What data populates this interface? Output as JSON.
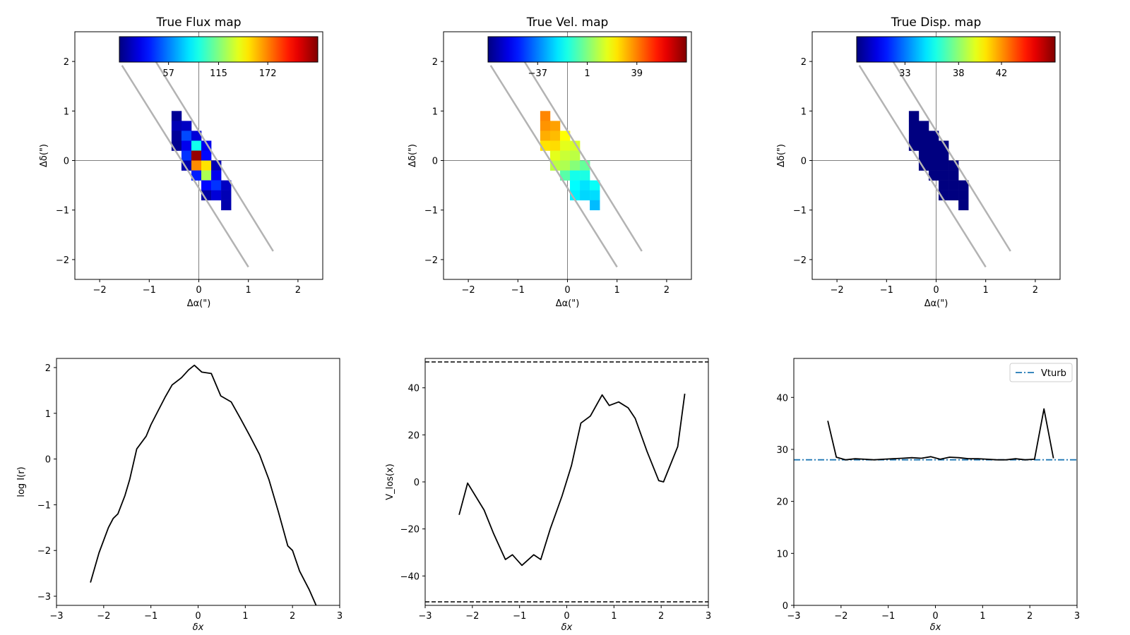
{
  "chart_data": [
    {
      "type": "heatmap",
      "title": "True Flux map",
      "xlabel": "Δα(\")",
      "ylabel": "Δδ(\")",
      "xlim": [
        -2.5,
        2.5
      ],
      "ylim": [
        -2.4,
        2.6
      ],
      "xticks": [
        -2,
        -1,
        0,
        1,
        2
      ],
      "yticks": [
        -2,
        -1,
        0,
        1,
        2
      ],
      "colormap": "jet",
      "vmin": 0,
      "vmax": 230,
      "colorbar_ticks": [
        57,
        115,
        172
      ],
      "pixel_size": 0.2,
      "cells": [
        {
          "x": -0.45,
          "y": 0.9,
          "v": 5
        },
        {
          "x": -0.45,
          "y": 0.7,
          "v": 12
        },
        {
          "x": -0.45,
          "y": 0.5,
          "v": 6
        },
        {
          "x": -0.45,
          "y": 0.3,
          "v": 4
        },
        {
          "x": -0.25,
          "y": 0.7,
          "v": 15
        },
        {
          "x": -0.25,
          "y": 0.5,
          "v": 45
        },
        {
          "x": -0.25,
          "y": 0.3,
          "v": 25
        },
        {
          "x": -0.25,
          "y": 0.1,
          "v": 40
        },
        {
          "x": -0.25,
          "y": -0.1,
          "v": 10
        },
        {
          "x": -0.05,
          "y": 0.5,
          "v": 20
        },
        {
          "x": -0.05,
          "y": 0.3,
          "v": 90
        },
        {
          "x": -0.05,
          "y": 0.1,
          "v": 225
        },
        {
          "x": -0.05,
          "y": -0.1,
          "v": 170
        },
        {
          "x": -0.05,
          "y": -0.3,
          "v": 35
        },
        {
          "x": 0.15,
          "y": 0.3,
          "v": 25
        },
        {
          "x": 0.15,
          "y": 0.1,
          "v": 30
        },
        {
          "x": 0.15,
          "y": -0.1,
          "v": 150
        },
        {
          "x": 0.15,
          "y": -0.3,
          "v": 125
        },
        {
          "x": 0.15,
          "y": -0.5,
          "v": 30
        },
        {
          "x": 0.15,
          "y": -0.7,
          "v": 8
        },
        {
          "x": 0.35,
          "y": -0.1,
          "v": 12
        },
        {
          "x": 0.35,
          "y": -0.3,
          "v": 25
        },
        {
          "x": 0.35,
          "y": -0.5,
          "v": 40
        },
        {
          "x": 0.35,
          "y": -0.7,
          "v": 20
        },
        {
          "x": 0.55,
          "y": -0.5,
          "v": 15
        },
        {
          "x": 0.55,
          "y": -0.7,
          "v": 12
        },
        {
          "x": 0.55,
          "y": -0.9,
          "v": 10
        }
      ],
      "slit_lines": [
        {
          "x": [
            -1.55,
            1.0
          ],
          "y": [
            1.92,
            -2.15
          ]
        },
        {
          "x": [
            -0.9,
            1.5
          ],
          "y": [
            2.05,
            -1.83
          ]
        }
      ]
    },
    {
      "type": "heatmap",
      "title": "True Vel. map",
      "xlabel": "Δα(\")",
      "ylabel": "Δδ(\")",
      "xlim": [
        -2.5,
        2.5
      ],
      "ylim": [
        -2.4,
        2.6
      ],
      "xticks": [
        -2,
        -1,
        0,
        1,
        2
      ],
      "yticks": [
        -2,
        -1,
        0,
        1,
        2
      ],
      "colormap": "jet",
      "vmin": -75,
      "vmax": 77,
      "colorbar_ticks": [
        -37,
        1,
        39
      ],
      "pixel_size": 0.2,
      "cells": [
        {
          "x": -0.45,
          "y": 0.9,
          "v": 38
        },
        {
          "x": -0.45,
          "y": 0.7,
          "v": 36
        },
        {
          "x": -0.45,
          "y": 0.5,
          "v": 32
        },
        {
          "x": -0.45,
          "y": 0.3,
          "v": 24
        },
        {
          "x": -0.25,
          "y": 0.7,
          "v": 34
        },
        {
          "x": -0.25,
          "y": 0.5,
          "v": 30
        },
        {
          "x": -0.25,
          "y": 0.3,
          "v": 25
        },
        {
          "x": -0.25,
          "y": 0.1,
          "v": 16
        },
        {
          "x": -0.25,
          "y": -0.1,
          "v": 10
        },
        {
          "x": -0.05,
          "y": 0.5,
          "v": 20
        },
        {
          "x": -0.05,
          "y": 0.3,
          "v": 16
        },
        {
          "x": -0.05,
          "y": 0.1,
          "v": 12
        },
        {
          "x": -0.05,
          "y": -0.1,
          "v": 8
        },
        {
          "x": -0.05,
          "y": -0.3,
          "v": -5
        },
        {
          "x": 0.15,
          "y": 0.3,
          "v": 14
        },
        {
          "x": 0.15,
          "y": 0.1,
          "v": 10
        },
        {
          "x": 0.15,
          "y": -0.1,
          "v": 2
        },
        {
          "x": 0.15,
          "y": -0.3,
          "v": -15
        },
        {
          "x": 0.15,
          "y": -0.5,
          "v": -18
        },
        {
          "x": 0.15,
          "y": -0.7,
          "v": -20
        },
        {
          "x": 0.35,
          "y": -0.1,
          "v": -3
        },
        {
          "x": 0.35,
          "y": -0.3,
          "v": -14
        },
        {
          "x": 0.35,
          "y": -0.5,
          "v": -22
        },
        {
          "x": 0.35,
          "y": -0.7,
          "v": -24
        },
        {
          "x": 0.55,
          "y": -0.5,
          "v": -17
        },
        {
          "x": 0.55,
          "y": -0.7,
          "v": -23
        },
        {
          "x": 0.55,
          "y": -0.9,
          "v": -28
        }
      ],
      "slit_lines": [
        {
          "x": [
            -1.55,
            1.0
          ],
          "y": [
            1.92,
            -2.15
          ]
        },
        {
          "x": [
            -0.9,
            1.5
          ],
          "y": [
            2.05,
            -1.83
          ]
        }
      ]
    },
    {
      "type": "heatmap",
      "title": "True Disp. map",
      "xlabel": "Δα(\")",
      "ylabel": "Δδ(\")",
      "xlim": [
        -2.5,
        2.5
      ],
      "ylim": [
        -2.4,
        2.6
      ],
      "xticks": [
        -2,
        -1,
        0,
        1,
        2
      ],
      "yticks": [
        -2,
        -1,
        0,
        1,
        2
      ],
      "colormap": "jet",
      "vmin": 28.5,
      "vmax": 47,
      "colorbar_ticks": [
        33,
        38,
        42
      ],
      "pixel_size": 0.2,
      "cells": [
        {
          "x": -0.45,
          "y": 0.9,
          "v": 28.5
        },
        {
          "x": -0.45,
          "y": 0.7,
          "v": 28.5
        },
        {
          "x": -0.45,
          "y": 0.5,
          "v": 28.5
        },
        {
          "x": -0.45,
          "y": 0.3,
          "v": 28.5
        },
        {
          "x": -0.25,
          "y": 0.7,
          "v": 28.5
        },
        {
          "x": -0.25,
          "y": 0.5,
          "v": 28.5
        },
        {
          "x": -0.25,
          "y": 0.3,
          "v": 28.5
        },
        {
          "x": -0.25,
          "y": 0.1,
          "v": 28.5
        },
        {
          "x": -0.25,
          "y": -0.1,
          "v": 28.5
        },
        {
          "x": -0.05,
          "y": 0.5,
          "v": 28.5
        },
        {
          "x": -0.05,
          "y": 0.3,
          "v": 28.5
        },
        {
          "x": -0.05,
          "y": 0.1,
          "v": 28.5
        },
        {
          "x": -0.05,
          "y": -0.1,
          "v": 28.5
        },
        {
          "x": -0.05,
          "y": -0.3,
          "v": 28.5
        },
        {
          "x": 0.15,
          "y": 0.3,
          "v": 28.5
        },
        {
          "x": 0.15,
          "y": 0.1,
          "v": 28.5
        },
        {
          "x": 0.15,
          "y": -0.1,
          "v": 28.5
        },
        {
          "x": 0.15,
          "y": -0.3,
          "v": 28.5
        },
        {
          "x": 0.15,
          "y": -0.5,
          "v": 28.5
        },
        {
          "x": 0.15,
          "y": -0.7,
          "v": 28.5
        },
        {
          "x": 0.35,
          "y": -0.1,
          "v": 28.5
        },
        {
          "x": 0.35,
          "y": -0.3,
          "v": 28.5
        },
        {
          "x": 0.35,
          "y": -0.5,
          "v": 28.5
        },
        {
          "x": 0.35,
          "y": -0.7,
          "v": 28.5
        },
        {
          "x": 0.55,
          "y": -0.5,
          "v": 28.5
        },
        {
          "x": 0.55,
          "y": -0.7,
          "v": 28.5
        },
        {
          "x": 0.55,
          "y": -0.9,
          "v": 28.5
        }
      ],
      "slit_lines": [
        {
          "x": [
            -1.55,
            1.0
          ],
          "y": [
            1.92,
            -2.15
          ]
        },
        {
          "x": [
            -0.9,
            1.5
          ],
          "y": [
            2.05,
            -1.83
          ]
        }
      ]
    },
    {
      "type": "line",
      "title": "",
      "xlabel": "δx",
      "ylabel": "log I(r)",
      "xlim": [
        -3,
        3
      ],
      "ylim": [
        -3.2,
        2.2
      ],
      "xticks": [
        -3,
        -2,
        -1,
        0,
        1,
        2,
        3
      ],
      "yticks": [
        -3,
        -2,
        -1,
        0,
        1,
        2
      ],
      "series": [
        {
          "color": "#000000",
          "x": [
            -2.28,
            -2.1,
            -1.9,
            -1.8,
            -1.7,
            -1.55,
            -1.45,
            -1.3,
            -1.1,
            -1.0,
            -0.85,
            -0.7,
            -0.55,
            -0.35,
            -0.2,
            -0.08,
            0.08,
            0.28,
            0.48,
            0.7,
            0.9,
            1.1,
            1.3,
            1.5,
            1.7,
            1.9,
            2.0,
            2.15,
            2.35,
            2.5
          ],
          "y": [
            -2.7,
            -2.05,
            -1.5,
            -1.3,
            -1.2,
            -0.8,
            -0.45,
            0.22,
            0.5,
            0.75,
            1.05,
            1.35,
            1.62,
            1.78,
            1.95,
            2.05,
            1.9,
            1.87,
            1.38,
            1.25,
            0.88,
            0.5,
            0.1,
            -0.45,
            -1.15,
            -1.9,
            -2.0,
            -2.45,
            -2.85,
            -3.2
          ]
        }
      ]
    },
    {
      "type": "line",
      "title": "",
      "xlabel": "δx",
      "ylabel": "V_los(x)",
      "xlim": [
        -3,
        3
      ],
      "ylim": [
        -52.5,
        52.5
      ],
      "xticks": [
        -3,
        -2,
        -1,
        0,
        1,
        2,
        3
      ],
      "yticks": [
        -40,
        -20,
        0,
        20,
        40
      ],
      "hlines": [
        51,
        -51
      ],
      "series": [
        {
          "color": "#000000",
          "x": [
            -2.28,
            -2.1,
            -1.75,
            -1.55,
            -1.3,
            -1.15,
            -0.95,
            -0.7,
            -0.55,
            -0.35,
            -0.1,
            0.1,
            0.3,
            0.5,
            0.75,
            0.9,
            1.1,
            1.3,
            1.45,
            1.7,
            1.95,
            2.05,
            2.35,
            2.5
          ],
          "y": [
            -14,
            -0.5,
            -12,
            -22,
            -33,
            -31,
            -35.5,
            -31,
            -33,
            -20,
            -6,
            7,
            25,
            28,
            37,
            32.5,
            34,
            31.5,
            27,
            13,
            0.5,
            0,
            15,
            37.5
          ]
        }
      ]
    },
    {
      "type": "line",
      "title": "",
      "xlabel": "δx",
      "ylabel": "",
      "xlim": [
        -3,
        3
      ],
      "ylim": [
        0,
        47.5
      ],
      "xticks": [
        -3,
        -2,
        -1,
        0,
        1,
        2,
        3
      ],
      "yticks": [
        0,
        10,
        20,
        30,
        40
      ],
      "legend": {
        "label": "Vturb",
        "placement": "upper right"
      },
      "hline": {
        "value": 28,
        "label": "Vturb",
        "color": "#1f77b4"
      },
      "series": [
        {
          "color": "#000000",
          "x": [
            -2.28,
            -2.1,
            -1.9,
            -1.7,
            -1.5,
            -1.3,
            -1.1,
            -0.9,
            -0.7,
            -0.5,
            -0.3,
            -0.1,
            0.1,
            0.3,
            0.5,
            0.7,
            0.9,
            1.1,
            1.3,
            1.5,
            1.7,
            1.9,
            2.1,
            2.3,
            2.5
          ],
          "y": [
            35.5,
            28.5,
            28,
            28.2,
            28.1,
            28,
            28.1,
            28.2,
            28.3,
            28.4,
            28.3,
            28.6,
            28.1,
            28.5,
            28.4,
            28.2,
            28.2,
            28.1,
            28,
            28,
            28.2,
            28,
            28.1,
            37.8,
            28.3
          ]
        }
      ]
    }
  ]
}
